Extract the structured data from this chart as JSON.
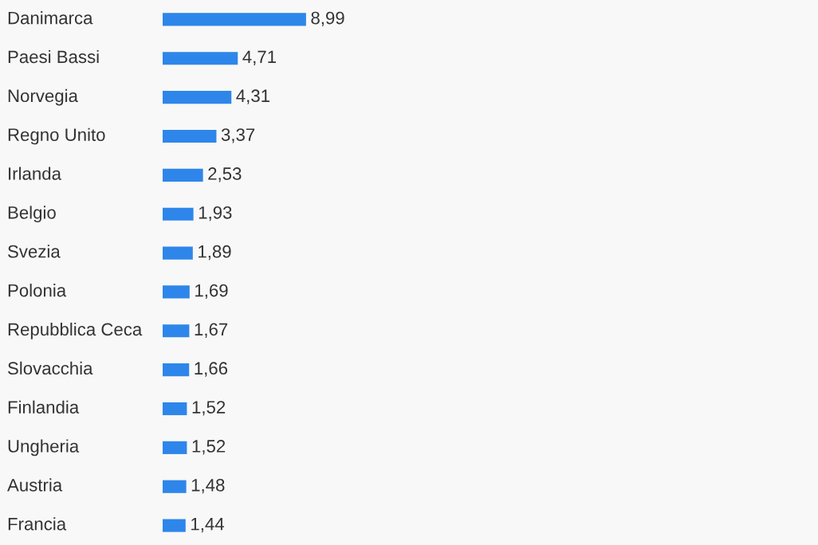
{
  "chart_data": {
    "type": "bar",
    "orientation": "horizontal",
    "categories": [
      "Danimarca",
      "Paesi Bassi",
      "Norvegia",
      "Regno Unito",
      "Irlanda",
      "Belgio",
      "Svezia",
      "Polonia",
      "Repubblica Ceca",
      "Slovacchia",
      "Finlandia",
      "Ungheria",
      "Austria",
      "Francia"
    ],
    "values": [
      8.99,
      4.71,
      4.31,
      3.37,
      2.53,
      1.93,
      1.89,
      1.69,
      1.67,
      1.66,
      1.52,
      1.52,
      1.48,
      1.44
    ],
    "value_labels": [
      "8,99",
      "4,71",
      "4,31",
      "3,37",
      "2,53",
      "1,93",
      "1,89",
      "1,69",
      "1,67",
      "1,66",
      "1,52",
      "1,52",
      "1,48",
      "1,44"
    ],
    "color": "#2e86ea"
  }
}
